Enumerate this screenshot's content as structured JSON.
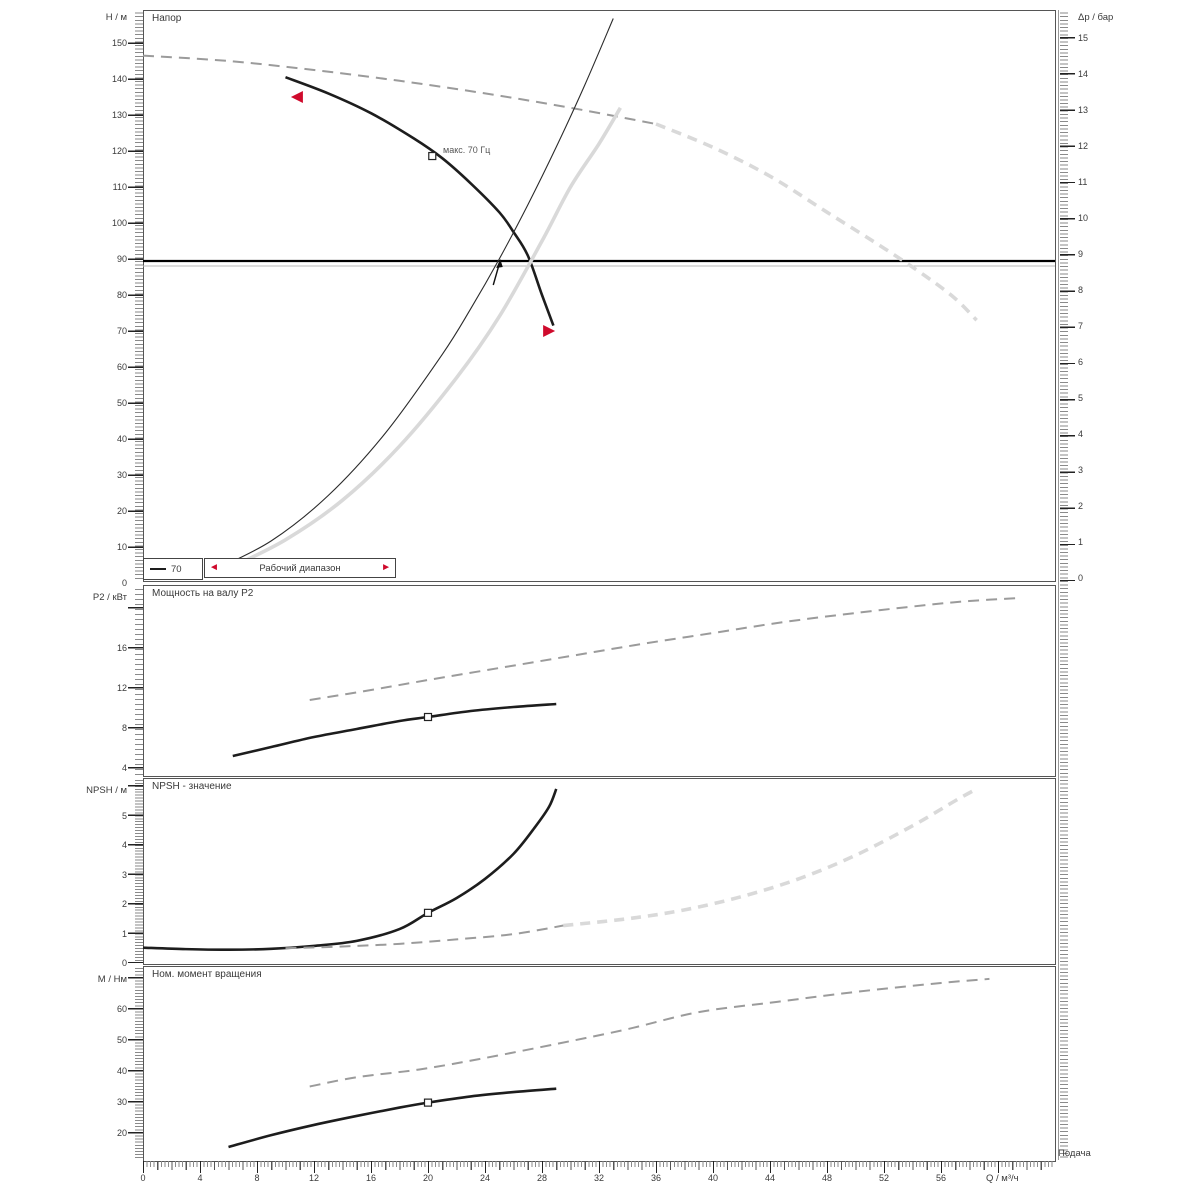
{
  "legend": {
    "line_symbol": "—",
    "line_value": "70",
    "range_label": "Рабочий диапазон"
  },
  "axes": {
    "x_ticks": [
      0,
      4,
      8,
      12,
      16,
      20,
      24,
      28,
      32,
      36,
      40,
      44,
      48,
      52,
      56
    ],
    "x_unit_label": "Q / м³/ч",
    "x_title": "Подача",
    "dp_label": "Δp / бар",
    "dp_ticks": [
      15,
      14,
      13,
      12,
      11,
      10,
      9,
      8,
      7,
      6,
      5,
      4,
      3,
      2,
      1,
      0
    ],
    "head_ticks": [
      150,
      140,
      130,
      120,
      110,
      100,
      90,
      80,
      70,
      60,
      50,
      40,
      30,
      20,
      10,
      0
    ],
    "power_ticks": [
      16,
      12,
      8,
      4
    ],
    "npsh_ticks": [
      5,
      4,
      3,
      2,
      1,
      0
    ],
    "torque_ticks": [
      60,
      50,
      40,
      30,
      20
    ]
  },
  "chart_data": {
    "type": "line",
    "x_axis": {
      "label": "Q / м³/ч",
      "min": 0,
      "max": 64,
      "title": "Подача"
    },
    "panels": [
      {
        "id": "head",
        "title": "Напор",
        "ylabel": "H / м",
        "right_ylabel": "Δp / бар",
        "ylim": [
          0,
          160
        ],
        "h_line": 90,
        "duty_point": {
          "q": 25,
          "v": 90
        },
        "point_marker": {
          "q": 20.3,
          "v": 118.6
        },
        "point_label": "макс. 70 Гц",
        "range_markers": [
          {
            "q": 10.8,
            "v": 135,
            "dir": "left"
          },
          {
            "q": 28.5,
            "v": 70,
            "dir": "right"
          }
        ],
        "series": [
          {
            "name": "qh-curve-70hz-working-range",
            "style": "black",
            "points": [
              [
                10,
                140.5
              ],
              [
                13,
                136
              ],
              [
                16,
                130.5
              ],
              [
                19,
                123.5
              ],
              [
                21,
                118
              ],
              [
                23,
                111
              ],
              [
                25,
                103
              ],
              [
                26,
                97.5
              ],
              [
                27,
                91
              ],
              [
                28,
                80
              ],
              [
                28.8,
                71.5
              ]
            ]
          },
          {
            "name": "qh-curve-max-dashed",
            "style": "dash",
            "points": [
              [
                0,
                146.5
              ],
              [
                6,
                145
              ],
              [
                12,
                142.5
              ],
              [
                18,
                139.5
              ],
              [
                24,
                136
              ],
              [
                30,
                132
              ],
              [
                36,
                127.5
              ]
            ]
          },
          {
            "name": "qh-curve-max-extension",
            "style": "lightdash",
            "points": [
              [
                36,
                127.5
              ],
              [
                40,
                121
              ],
              [
                44,
                113
              ],
              [
                48,
                103
              ],
              [
                52,
                93
              ],
              [
                55,
                85
              ],
              [
                57,
                79
              ],
              [
                58.5,
                73
              ]
            ]
          },
          {
            "name": "system-curve-gray",
            "style": "light",
            "points": [
              [
                6,
                4
              ],
              [
                10,
                12
              ],
              [
                14,
                23
              ],
              [
                18,
                38
              ],
              [
                22,
                57
              ],
              [
                25,
                74
              ],
              [
                28,
                95
              ],
              [
                30,
                110
              ],
              [
                32,
                122
              ],
              [
                33.5,
                132
              ]
            ]
          },
          {
            "name": "system-curve-thin",
            "style": "thin",
            "points": [
              [
                5,
                3.6
              ],
              [
                9,
                11.7
              ],
              [
                13,
                24.3
              ],
              [
                17,
                41.6
              ],
              [
                21,
                63.5
              ],
              [
                23,
                76.2
              ],
              [
                25,
                90
              ],
              [
                27,
                105
              ],
              [
                29,
                121.1
              ],
              [
                31,
                138.3
              ],
              [
                33,
                156.8
              ]
            ]
          }
        ]
      },
      {
        "id": "power",
        "title": "Мощность на валу P2",
        "ylabel": "P2 / кВт",
        "ylim": [
          3.5,
          22.5
        ],
        "point_marker": {
          "q": 20,
          "v": 9.1
        },
        "series": [
          {
            "name": "p2-curve-working-range",
            "style": "black",
            "points": [
              [
                6.3,
                5.2
              ],
              [
                9,
                6.1
              ],
              [
                12,
                7.1
              ],
              [
                15,
                7.9
              ],
              [
                18,
                8.7
              ],
              [
                20,
                9.1
              ],
              [
                23,
                9.7
              ],
              [
                26,
                10.1
              ],
              [
                29,
                10.4
              ]
            ]
          },
          {
            "name": "p2-curve-max-dashed",
            "style": "dash",
            "points": [
              [
                11.7,
                10.8
              ],
              [
                16,
                11.8
              ],
              [
                20,
                12.8
              ],
              [
                25,
                14.0
              ],
              [
                30,
                15.2
              ],
              [
                35,
                16.4
              ],
              [
                40,
                17.5
              ],
              [
                45,
                18.6
              ],
              [
                50,
                19.5
              ],
              [
                55,
                20.3
              ],
              [
                58,
                20.7
              ],
              [
                61.5,
                21.0
              ]
            ]
          }
        ]
      },
      {
        "id": "npsh",
        "title": "NPSH - значение",
        "ylabel": "NPSH / м",
        "ylim": [
          0,
          6.3
        ],
        "point_marker": {
          "q": 20,
          "v": 1.7
        },
        "series": [
          {
            "name": "npsh-curve-working-range",
            "style": "black",
            "points": [
              [
                0,
                0.52
              ],
              [
                3,
                0.47
              ],
              [
                6,
                0.45
              ],
              [
                9,
                0.48
              ],
              [
                12,
                0.58
              ],
              [
                15,
                0.75
              ],
              [
                18,
                1.15
              ],
              [
                20,
                1.7
              ],
              [
                22,
                2.2
              ],
              [
                24,
                2.85
              ],
              [
                26,
                3.7
              ],
              [
                27.5,
                4.6
              ],
              [
                28.5,
                5.3
              ],
              [
                29,
                5.9
              ]
            ]
          },
          {
            "name": "npsh-curve-max-dashed",
            "style": "dash",
            "points": [
              [
                10,
                0.5
              ],
              [
                14,
                0.56
              ],
              [
                18,
                0.65
              ],
              [
                22,
                0.8
              ],
              [
                26,
                0.98
              ],
              [
                29.5,
                1.27
              ]
            ]
          },
          {
            "name": "npsh-curve-max-extension",
            "style": "lightdash",
            "points": [
              [
                29.5,
                1.27
              ],
              [
                34,
                1.5
              ],
              [
                38,
                1.8
              ],
              [
                42,
                2.25
              ],
              [
                46,
                2.85
              ],
              [
                50,
                3.65
              ],
              [
                54,
                4.65
              ],
              [
                57,
                5.5
              ],
              [
                58.5,
                5.9
              ]
            ]
          }
        ]
      },
      {
        "id": "torque",
        "title": "Ном. момент вращения",
        "ylabel": "M / Нм",
        "ylim": [
          12,
          74
        ],
        "point_marker": {
          "q": 20,
          "v": 29.8
        },
        "series": [
          {
            "name": "torque-curve-working-range",
            "style": "black",
            "points": [
              [
                6,
                15.5
              ],
              [
                9,
                19.3
              ],
              [
                12,
                22.6
              ],
              [
                15,
                25.5
              ],
              [
                18,
                28.2
              ],
              [
                20,
                29.8
              ],
              [
                23,
                31.8
              ],
              [
                26,
                33.2
              ],
              [
                29,
                34.3
              ]
            ]
          },
          {
            "name": "torque-curve-max-dashed",
            "style": "dash",
            "points": [
              [
                11.7,
                35
              ],
              [
                15,
                38
              ],
              [
                19.4,
                40.5
              ],
              [
                24,
                44.2
              ],
              [
                29.3,
                49
              ],
              [
                34,
                53.5
              ],
              [
                39,
                59
              ],
              [
                44.5,
                62.3
              ],
              [
                50,
                65.5
              ],
              [
                56,
                68.4
              ],
              [
                59.4,
                69.7
              ]
            ]
          }
        ]
      }
    ]
  }
}
